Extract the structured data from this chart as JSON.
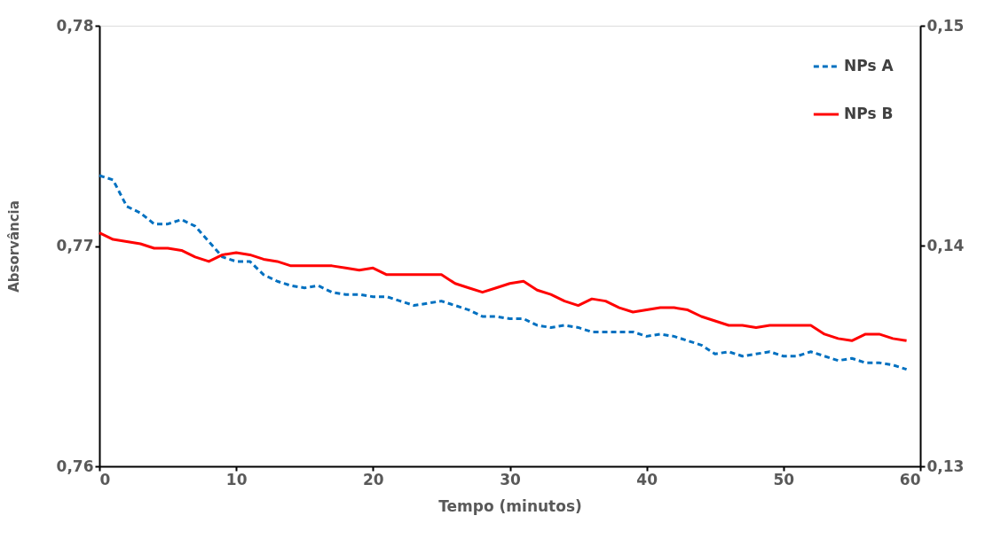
{
  "chart_data": {
    "type": "line",
    "xlabel": "Tempo (minutos)",
    "ylabel": "Absorvância",
    "x": [
      0,
      1,
      2,
      3,
      4,
      5,
      6,
      7,
      8,
      9,
      10,
      11,
      12,
      13,
      14,
      15,
      16,
      17,
      18,
      19,
      20,
      21,
      22,
      23,
      24,
      25,
      26,
      27,
      28,
      29,
      30,
      31,
      32,
      33,
      34,
      35,
      36,
      37,
      38,
      39,
      40,
      41,
      42,
      43,
      44,
      45,
      46,
      47,
      48,
      49,
      50,
      51,
      52,
      53,
      54,
      55,
      56,
      57,
      58,
      59
    ],
    "xlim": [
      0,
      60
    ],
    "xticks": [
      0,
      10,
      20,
      30,
      40,
      50,
      60
    ],
    "ylim": [
      0.76,
      0.78
    ],
    "yticks": [
      {
        "value": 0.76,
        "label": "0,76"
      },
      {
        "value": 0.77,
        "label": "0,77"
      },
      {
        "value": 0.78,
        "label": "0,78"
      }
    ],
    "y2lim": [
      0.13,
      0.15
    ],
    "y2ticks": [
      {
        "value": 0.13,
        "label": "0,13"
      },
      {
        "value": 0.14,
        "label": "0,14"
      },
      {
        "value": 0.15,
        "label": "0,15"
      }
    ],
    "grid": false,
    "legend": "top right",
    "marker": "none",
    "series": [
      {
        "name": "NPs A",
        "color": "#0070c0",
        "line_style": "dashed",
        "values": [
          0.7732,
          0.773,
          0.7718,
          0.7715,
          0.771,
          0.771,
          0.7712,
          0.7709,
          0.7702,
          0.7695,
          0.7693,
          0.7693,
          0.7687,
          0.7684,
          0.7682,
          0.7681,
          0.7682,
          0.7679,
          0.7678,
          0.7678,
          0.7677,
          0.7677,
          0.7675,
          0.7673,
          0.7674,
          0.7675,
          0.7673,
          0.7671,
          0.7668,
          0.7668,
          0.7667,
          0.7667,
          0.7664,
          0.7663,
          0.7664,
          0.7663,
          0.7661,
          0.7661,
          0.7661,
          0.7661,
          0.7659,
          0.766,
          0.7659,
          0.7657,
          0.7655,
          0.7651,
          0.7652,
          0.765,
          0.7651,
          0.7652,
          0.765,
          0.765,
          0.7652,
          0.765,
          0.7648,
          0.7649,
          0.7647,
          0.7647,
          0.7646,
          0.7644
        ]
      },
      {
        "name": "NPs B",
        "color": "#ff0000",
        "line_style": "solid",
        "axis": "y2",
        "values": [
          0.1406,
          0.1403,
          0.1402,
          0.1401,
          0.1399,
          0.1399,
          0.1398,
          0.1395,
          0.1393,
          0.1396,
          0.1397,
          0.1396,
          0.1394,
          0.1393,
          0.1391,
          0.1391,
          0.1391,
          0.1391,
          0.139,
          0.1389,
          0.139,
          0.1387,
          0.1387,
          0.1387,
          0.1387,
          0.1387,
          0.1383,
          0.1381,
          0.1379,
          0.1381,
          0.1383,
          0.1384,
          0.138,
          0.1378,
          0.1375,
          0.1373,
          0.1376,
          0.1375,
          0.1372,
          0.137,
          0.1371,
          0.1372,
          0.1372,
          0.1371,
          0.1368,
          0.1366,
          0.1364,
          0.1364,
          0.1363,
          0.1364,
          0.1364,
          0.1364,
          0.1364,
          0.136,
          0.1358,
          0.1357,
          0.136,
          0.136,
          0.1358,
          0.1357
        ]
      }
    ]
  }
}
